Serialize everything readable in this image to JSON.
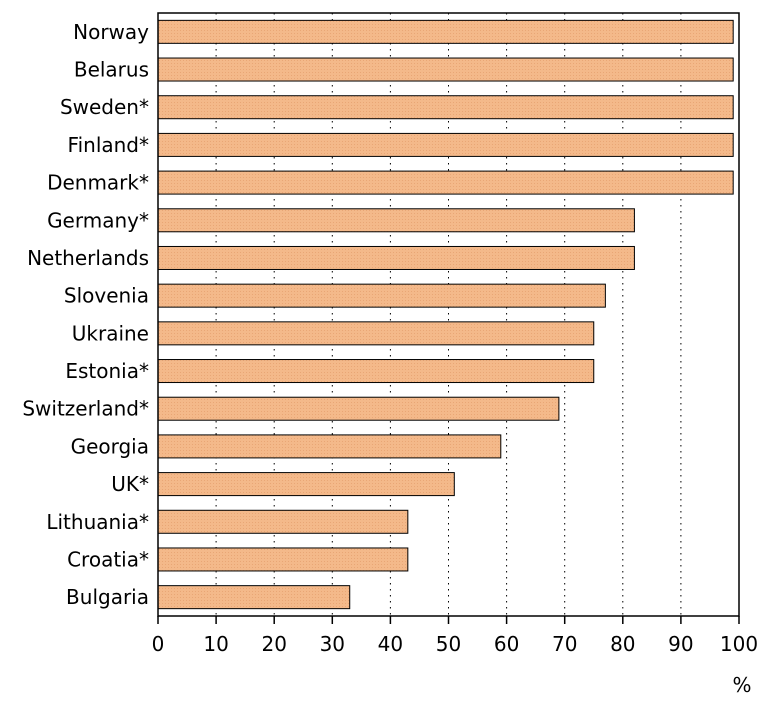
{
  "chart_data": {
    "type": "bar",
    "orientation": "horizontal",
    "categories": [
      "Norway",
      "Belarus",
      "Sweden*",
      "Finland*",
      "Denmark*",
      "Germany*",
      "Netherlands",
      "Slovenia",
      "Ukraine",
      "Estonia*",
      "Switzerland*",
      "Georgia",
      "UK*",
      "Lithuania*",
      "Croatia*",
      "Bulgaria"
    ],
    "values": [
      99,
      99,
      99,
      99,
      99,
      82,
      82,
      77,
      75,
      75,
      69,
      59,
      51,
      43,
      43,
      33
    ],
    "x_ticks": [
      "0",
      "10",
      "20",
      "30",
      "40",
      "50",
      "60",
      "70",
      "80",
      "90",
      "100"
    ],
    "xlim": [
      0,
      100
    ],
    "x_unit": "%",
    "grid": "vertical dotted",
    "colors": {
      "bar_fill": "#f2b585",
      "bar_stroke": "#000000",
      "grid": "#000000"
    }
  }
}
